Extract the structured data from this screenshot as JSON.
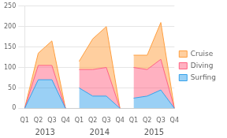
{
  "chart_data": {
    "type": "area",
    "stacked": true,
    "categories": [
      "Q1",
      "Q2",
      "Q3",
      "Q4",
      "Q1",
      "Q2",
      "Q3",
      "Q4",
      "Q1",
      "Q2",
      "Q3",
      "Q4"
    ],
    "annotations": [
      "2013",
      "2014",
      "2015"
    ],
    "series": [
      {
        "name": "Surfing",
        "values": [
          0,
          70,
          70,
          0,
          50,
          30,
          30,
          0,
          25,
          30,
          45,
          0
        ]
      },
      {
        "name": "Diving",
        "values": [
          0,
          35,
          35,
          0,
          45,
          65,
          70,
          0,
          75,
          65,
          75,
          0
        ]
      },
      {
        "name": "Cruise",
        "values": [
          0,
          30,
          60,
          0,
          20,
          75,
          100,
          0,
          30,
          35,
          90,
          0
        ]
      }
    ],
    "ylim": [
      0,
      250
    ],
    "yticks": [
      0,
      50,
      100,
      150,
      200,
      250
    ],
    "grid": true,
    "legend": "right"
  }
}
